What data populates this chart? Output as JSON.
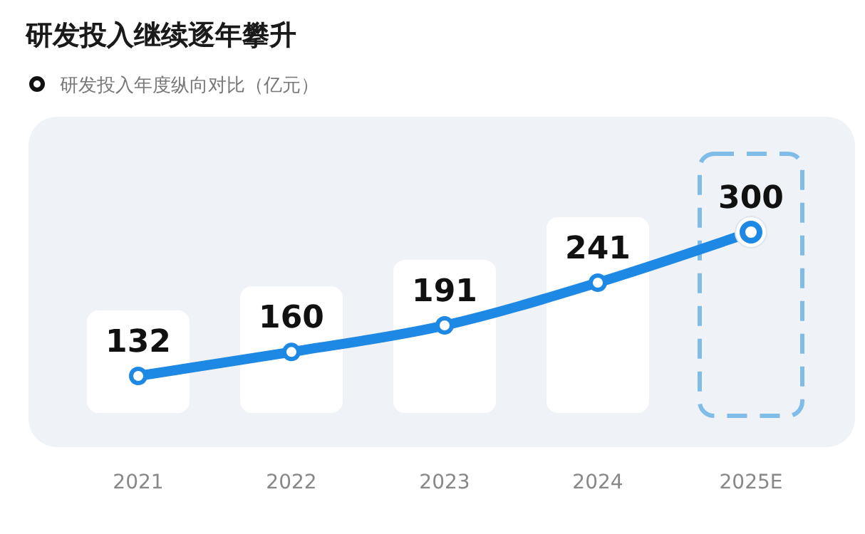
{
  "chart_data": {
    "type": "line",
    "title": "研发投入继续逐年攀升",
    "categories": [
      "2021",
      "2022",
      "2023",
      "2024",
      "2025E"
    ],
    "series": [
      {
        "name": "研发投入年度纵向对比（亿元）",
        "color": "#1e88e5",
        "values": [
          132,
          160,
          191,
          241,
          300
        ]
      }
    ],
    "data_labels": true,
    "marker": "circle",
    "legend": "top left"
  }
}
